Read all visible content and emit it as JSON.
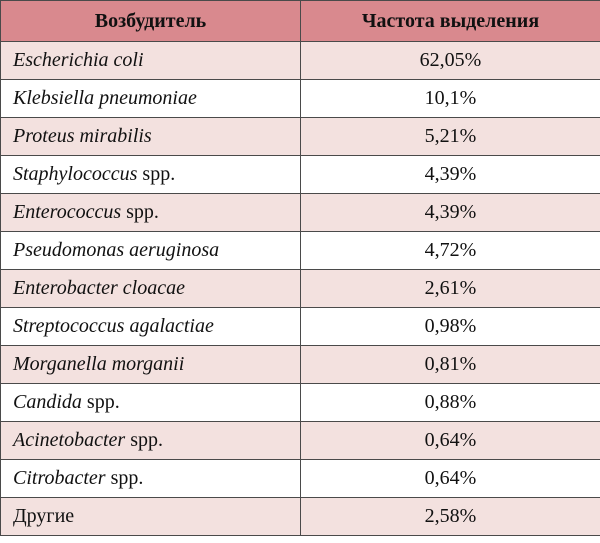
{
  "table": {
    "header": {
      "pathogen": "Возбудитель",
      "frequency": "Частота выделения"
    },
    "rows": [
      {
        "italic": "Escherichia coli",
        "suffix": "",
        "frequency": "62,05%"
      },
      {
        "italic": "Klebsiella pneumoniae",
        "suffix": "",
        "frequency": "10,1%"
      },
      {
        "italic": "Proteus mirabilis",
        "suffix": "",
        "frequency": "5,21%"
      },
      {
        "italic": "Staphylococcus",
        "suffix": " spp.",
        "frequency": "4,39%"
      },
      {
        "italic": "Enterococcus",
        "suffix": " spp.",
        "frequency": "4,39%"
      },
      {
        "italic": "Pseudomonas aeruginosa",
        "suffix": "",
        "frequency": "4,72%"
      },
      {
        "italic": "Enterobacter cloacae",
        "suffix": "",
        "frequency": "2,61%"
      },
      {
        "italic": "Streptococcus agalactiae",
        "suffix": "",
        "frequency": "0,98%"
      },
      {
        "italic": "Morganella morganii",
        "suffix": "",
        "frequency": "0,81%"
      },
      {
        "italic": "Candida",
        "suffix": " spp.",
        "frequency": "0,88%"
      },
      {
        "italic": "Acinetobacter",
        "suffix": " spp.",
        "frequency": "0,64%"
      },
      {
        "italic": "Citrobacter",
        "suffix": " spp.",
        "frequency": "0,64%"
      },
      {
        "italic": "",
        "suffix": "Другие",
        "frequency": "2,58%"
      }
    ],
    "colors": {
      "header_bg": "#d9898e",
      "shaded_row_bg": "#f3e1df",
      "plain_row_bg": "#ffffff",
      "border": "#4a4a4a"
    }
  }
}
